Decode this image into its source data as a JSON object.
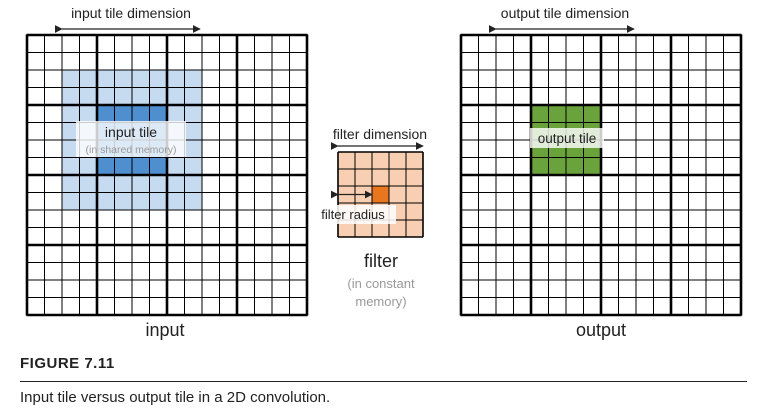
{
  "colors": {
    "input_tile_light": "#c6dbf0",
    "input_tile_dark": "#4f8fd0",
    "filter_fill": "#f8cfb2",
    "filter_center": "#e8761f",
    "output_tile": "#6aa33c",
    "grid": "#000000"
  },
  "input_grid": {
    "title": "input tile dimension",
    "bottom_label": "input",
    "tile_label": "input tile",
    "tile_sublabel": "(in shared memory)"
  },
  "filter": {
    "title": "filter dimension",
    "radius_label": "filter radius",
    "bottom_label": "filter",
    "sublabel_line1": "(in constant",
    "sublabel_line2": "memory)"
  },
  "output_grid": {
    "title": "output tile dimension",
    "bottom_label": "output",
    "tile_label": "output tile"
  },
  "figure": {
    "label": "FIGURE 7.11",
    "caption": "Input tile versus output tile in a 2D convolution."
  }
}
